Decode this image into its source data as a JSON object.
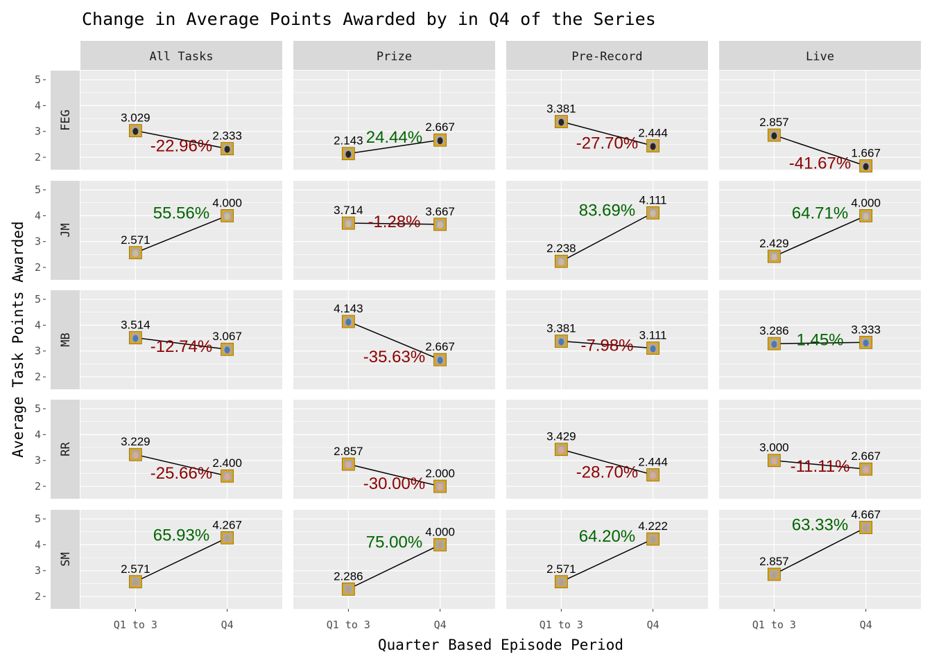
{
  "chart_data": {
    "type": "line",
    "title": "Change in Average Points Awarded by in Q4 of the Series",
    "xlabel": "Quarter Based Episode Period",
    "ylabel": "Average Task Points Awarded",
    "x_categories": [
      "Q1 to 3",
      "Q4"
    ],
    "y_ticks": [
      2,
      3,
      4,
      5
    ],
    "ylim": [
      1.52,
      5.35
    ],
    "grid": true,
    "facet_columns": [
      "All Tasks",
      "Prize",
      "Pre-Record",
      "Live"
    ],
    "facet_rows": [
      "FEG",
      "JM",
      "MB",
      "RR",
      "SM"
    ],
    "positive_color": "#006400",
    "negative_color": "#8B0000",
    "panels": [
      {
        "row": "FEG",
        "col": "All Tasks",
        "values": [
          3.029,
          2.333
        ],
        "labels": [
          "3.029",
          "2.333"
        ],
        "change": "-22.96%"
      },
      {
        "row": "FEG",
        "col": "Prize",
        "values": [
          2.143,
          2.667
        ],
        "labels": [
          "2.143",
          "2.667"
        ],
        "change": "24.44%"
      },
      {
        "row": "FEG",
        "col": "Pre-Record",
        "values": [
          3.381,
          2.444
        ],
        "labels": [
          "3.381",
          "2.444"
        ],
        "change": "-27.70%"
      },
      {
        "row": "FEG",
        "col": "Live",
        "values": [
          2.857,
          1.667
        ],
        "labels": [
          "2.857",
          "1.667"
        ],
        "change": "-41.67%"
      },
      {
        "row": "JM",
        "col": "All Tasks",
        "values": [
          2.571,
          4.0
        ],
        "labels": [
          "2.571",
          "4.000"
        ],
        "change": "55.56%"
      },
      {
        "row": "JM",
        "col": "Prize",
        "values": [
          3.714,
          3.667
        ],
        "labels": [
          "3.714",
          "3.667"
        ],
        "change": "-1.28%"
      },
      {
        "row": "JM",
        "col": "Pre-Record",
        "values": [
          2.238,
          4.111
        ],
        "labels": [
          "2.238",
          "4.111"
        ],
        "change": "83.69%"
      },
      {
        "row": "JM",
        "col": "Live",
        "values": [
          2.429,
          4.0
        ],
        "labels": [
          "2.429",
          "4.000"
        ],
        "change": "64.71%"
      },
      {
        "row": "MB",
        "col": "All Tasks",
        "values": [
          3.514,
          3.067
        ],
        "labels": [
          "3.514",
          "3.067"
        ],
        "change": "-12.74%"
      },
      {
        "row": "MB",
        "col": "Prize",
        "values": [
          4.143,
          2.667
        ],
        "labels": [
          "4.143",
          "2.667"
        ],
        "change": "-35.63%"
      },
      {
        "row": "MB",
        "col": "Pre-Record",
        "values": [
          3.381,
          3.111
        ],
        "labels": [
          "3.381",
          "3.111"
        ],
        "change": "-7.98%"
      },
      {
        "row": "MB",
        "col": "Live",
        "values": [
          3.286,
          3.333
        ],
        "labels": [
          "3.286",
          "3.333"
        ],
        "change": "1.45%"
      },
      {
        "row": "RR",
        "col": "All Tasks",
        "values": [
          3.229,
          2.4
        ],
        "labels": [
          "3.229",
          "2.400"
        ],
        "change": "-25.66%"
      },
      {
        "row": "RR",
        "col": "Prize",
        "values": [
          2.857,
          2.0
        ],
        "labels": [
          "2.857",
          "2.000"
        ],
        "change": "-30.00%"
      },
      {
        "row": "RR",
        "col": "Pre-Record",
        "values": [
          3.429,
          2.444
        ],
        "labels": [
          "3.429",
          "2.444"
        ],
        "change": "-28.70%"
      },
      {
        "row": "RR",
        "col": "Live",
        "values": [
          3.0,
          2.667
        ],
        "labels": [
          "3.000",
          "2.667"
        ],
        "change": "-11.11%"
      },
      {
        "row": "SM",
        "col": "All Tasks",
        "values": [
          2.571,
          4.267
        ],
        "labels": [
          "2.571",
          "4.267"
        ],
        "change": "65.93%"
      },
      {
        "row": "SM",
        "col": "Prize",
        "values": [
          2.286,
          4.0
        ],
        "labels": [
          "2.286",
          "4.000"
        ],
        "change": "75.00%"
      },
      {
        "row": "SM",
        "col": "Pre-Record",
        "values": [
          2.571,
          4.222
        ],
        "labels": [
          "2.571",
          "4.222"
        ],
        "change": "64.20%"
      },
      {
        "row": "SM",
        "col": "Live",
        "values": [
          2.857,
          4.667
        ],
        "labels": [
          "2.857",
          "4.667"
        ],
        "change": "63.33%"
      }
    ]
  }
}
